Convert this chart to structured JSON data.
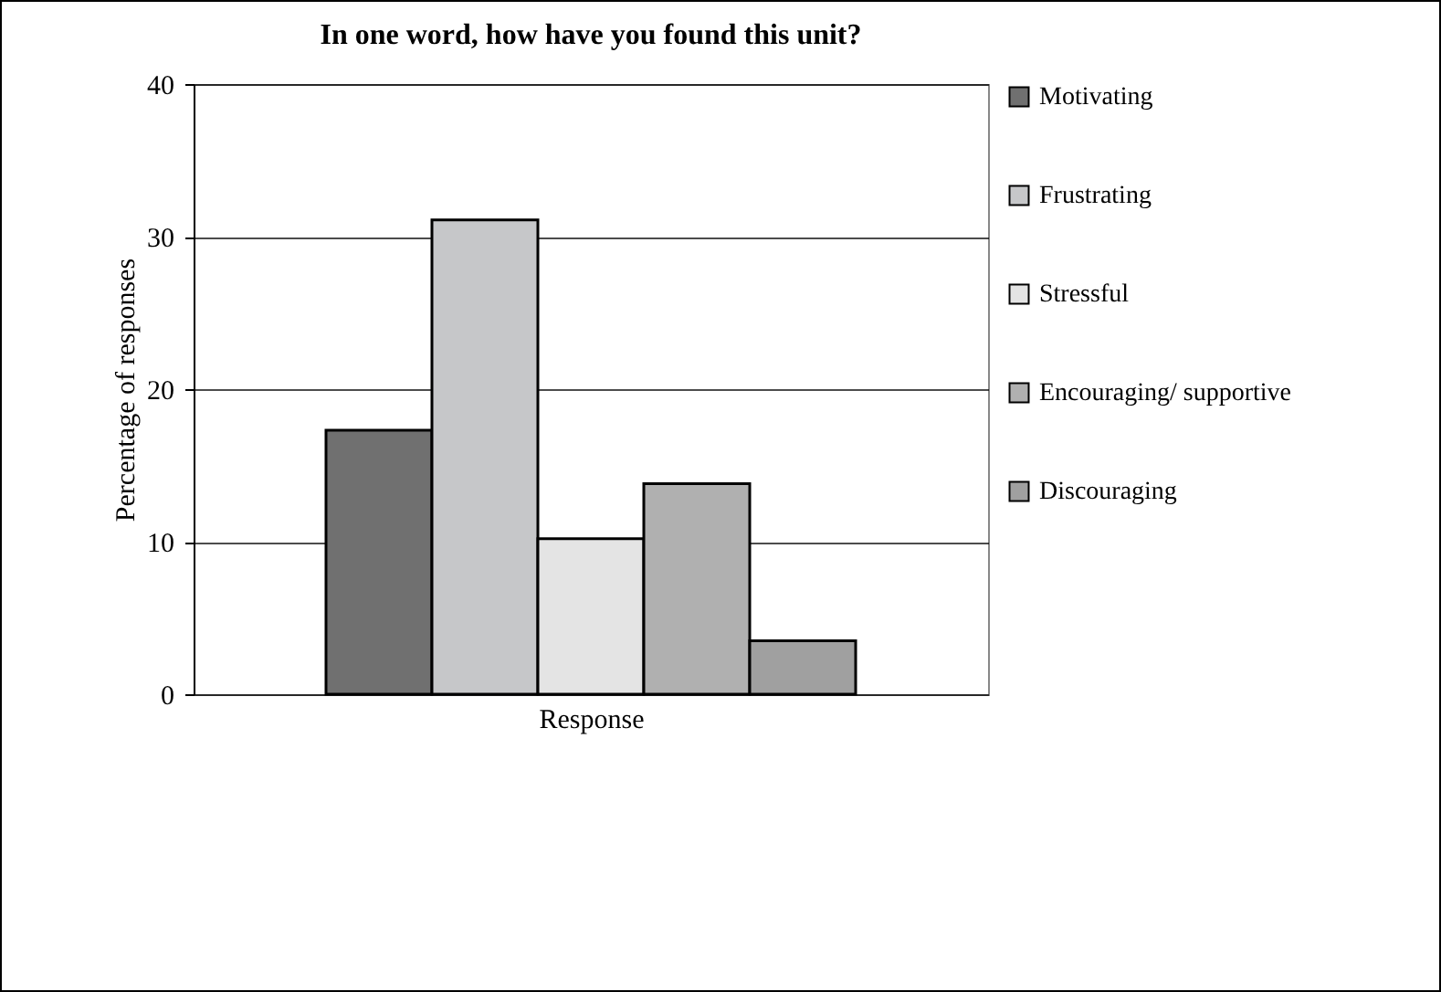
{
  "chart_data": {
    "type": "bar",
    "title": "In one word, how have you found this unit?",
    "xlabel": "Response",
    "ylabel": "Percentage of  responses",
    "categories": [
      null
    ],
    "series": [
      {
        "name": "Motivating",
        "color": "#707070",
        "values": [
          17.3
        ]
      },
      {
        "name": "Frustrating",
        "color": "#c6c7c9",
        "values": [
          31.1
        ]
      },
      {
        "name": "Stressful",
        "color": "#e4e4e4",
        "values": [
          10.2
        ]
      },
      {
        "name": "Encouraging/ supportive",
        "color": "#b0b0b0",
        "values": [
          13.8
        ]
      },
      {
        "name": "Discouraging",
        "color": "#a0a0a0",
        "values": [
          3.5
        ]
      }
    ],
    "ylim": [
      0,
      40
    ],
    "yticks": [
      0,
      10,
      20,
      30,
      40
    ],
    "grid": "y",
    "legend": "right"
  }
}
